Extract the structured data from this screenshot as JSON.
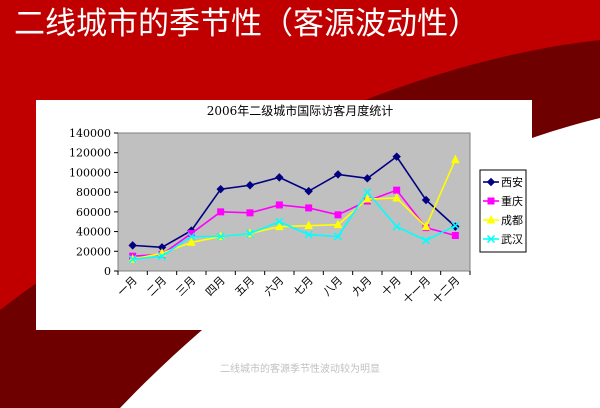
{
  "slide": {
    "title": "二线城市的季节性（客源波动性）",
    "footer": "二线城市的客源季节性波动较为明显"
  },
  "colors": {
    "background_red": "#c00000",
    "panel_white": "#ffffff",
    "plot_gray": "#c0c0c0"
  },
  "chart_data": {
    "type": "line",
    "title": "2006年二级城市国际访客月度统计",
    "categories": [
      "一月",
      "二月",
      "三月",
      "四月",
      "五月",
      "六月",
      "七月",
      "八月",
      "九月",
      "十月",
      "十一月",
      "十二月"
    ],
    "ylim": [
      0,
      140000
    ],
    "yticks": [
      "0",
      "20000",
      "40000",
      "60000",
      "80000",
      "100000",
      "120000",
      "140000"
    ],
    "grid": false,
    "legend": "right",
    "series": [
      {
        "name": "西安",
        "color": "#000080",
        "marker": "diamond",
        "values": [
          26000,
          24000,
          41000,
          83000,
          87000,
          95000,
          81000,
          98000,
          94000,
          116000,
          72000,
          45000
        ]
      },
      {
        "name": "重庆",
        "color": "#ff00ff",
        "marker": "square",
        "values": [
          15000,
          17000,
          38000,
          60000,
          59000,
          67000,
          64000,
          57000,
          71000,
          82000,
          44000,
          36000
        ]
      },
      {
        "name": "成都",
        "color": "#ffff00",
        "marker": "triangle",
        "values": [
          12000,
          18000,
          29000,
          35000,
          38000,
          45000,
          46000,
          47000,
          73000,
          74000,
          45000,
          113000
        ]
      },
      {
        "name": "武汉",
        "color": "#00ffff",
        "marker": "x",
        "values": [
          12000,
          15000,
          35000,
          35000,
          38000,
          50000,
          37000,
          35000,
          80000,
          45000,
          31000,
          46000
        ]
      }
    ]
  }
}
